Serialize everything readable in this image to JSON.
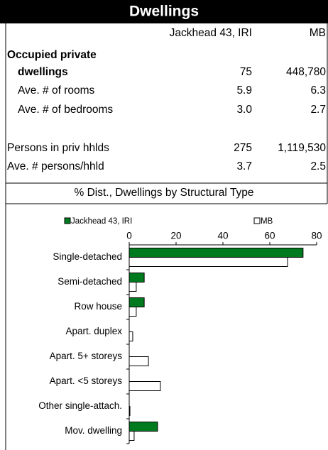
{
  "header": {
    "title": "Dwellings"
  },
  "table": {
    "columns": [
      "Jackhead 43, IRI",
      "MB"
    ],
    "rows": [
      {
        "label": "Occupied private"
      },
      {
        "label": "dwellings",
        "values": [
          "75",
          "448,780"
        ]
      },
      {
        "label": "Ave. # of rooms",
        "values": [
          "5.9",
          "6.3"
        ]
      },
      {
        "label": "Ave. # of bedrooms",
        "values": [
          "3.0",
          "2.7"
        ]
      },
      {
        "label": "Persons in priv hhlds",
        "values": [
          "275",
          "1,119,530"
        ]
      },
      {
        "label": "Ave. # persons/hhld",
        "values": [
          "3.7",
          "2.5"
        ]
      }
    ]
  },
  "chart_data": {
    "type": "hbar",
    "title": "% Dist., Dwellings by Structural Type",
    "categories": [
      "Single-detached",
      "Semi-detached",
      "Row house",
      "Apart. duplex",
      "Apart. 5+ storeys",
      "Apart. <5 storeys",
      "Other single-attach.",
      "Mov. dwelling"
    ],
    "series": [
      {
        "name": "Jackhead 43, IRI",
        "color": "#007a1f",
        "values": [
          74.2,
          6.4,
          6.4,
          0,
          0,
          0,
          0,
          12.1
        ]
      },
      {
        "name": "MB",
        "color": "#ffffff",
        "values": [
          67.6,
          3,
          3,
          1.5,
          8.2,
          13.3,
          0.3,
          2.1
        ]
      }
    ],
    "xlim": [
      0,
      80
    ],
    "xticks": [
      0,
      20,
      40,
      60,
      80
    ]
  }
}
